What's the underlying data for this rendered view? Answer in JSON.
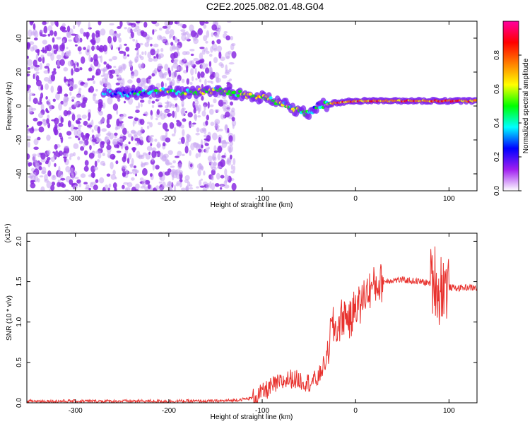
{
  "title": "C2E2.2025.082.01.48.G04",
  "chart_data": [
    {
      "type": "heatmap",
      "xlabel": "Height of straight line (km)",
      "ylabel": "Frequency (Hz)",
      "xlim": [
        -352,
        130
      ],
      "ylim": [
        -50,
        50
      ],
      "xticks": [
        -300,
        -200,
        -100,
        0,
        100
      ],
      "yticks": [
        -40,
        -20,
        0,
        20,
        40
      ],
      "colorbar": {
        "label": "Normalized spectral amplitude",
        "range": [
          0,
          1
        ],
        "ticks": [
          "0.0",
          "0.2",
          "0.4",
          "0.6",
          "0.8"
        ],
        "colors": [
          "#ffffff",
          "#a020f0",
          "#0000ff",
          "#00ffff",
          "#00ff00",
          "#ffff00",
          "#ff7f00",
          "#ff0000",
          "#ff00a0"
        ]
      },
      "noise_region_x": [
        -352,
        -130
      ],
      "signal_track": [
        {
          "x": -270,
          "y": 8,
          "amp": 0.3
        },
        {
          "x": -240,
          "y": 7,
          "amp": 0.35
        },
        {
          "x": -210,
          "y": 9,
          "amp": 0.45
        },
        {
          "x": -180,
          "y": 8,
          "amp": 0.5
        },
        {
          "x": -150,
          "y": 9,
          "amp": 0.55
        },
        {
          "x": -120,
          "y": 7,
          "amp": 0.55
        },
        {
          "x": -100,
          "y": 5,
          "amp": 0.6
        },
        {
          "x": -80,
          "y": 2,
          "amp": 0.5
        },
        {
          "x": -60,
          "y": -3,
          "amp": 0.45
        },
        {
          "x": -50,
          "y": -5,
          "amp": 0.4
        },
        {
          "x": -40,
          "y": 0,
          "amp": 0.35
        },
        {
          "x": -20,
          "y": 2,
          "amp": 0.7
        },
        {
          "x": 0,
          "y": 3,
          "amp": 0.75
        },
        {
          "x": 30,
          "y": 3,
          "amp": 0.7
        },
        {
          "x": 60,
          "y": 3,
          "amp": 0.75
        },
        {
          "x": 90,
          "y": 3,
          "amp": 0.8
        },
        {
          "x": 130,
          "y": 3,
          "amp": 0.75
        }
      ]
    },
    {
      "type": "line",
      "xlabel": "Height of straight line (km)",
      "ylabel": "SNR (10 * v/v)",
      "y_multiplier": "(x10⁴)",
      "xlim": [
        -352,
        130
      ],
      "ylim": [
        0,
        2.1
      ],
      "xticks": [
        -300,
        -200,
        -100,
        0,
        100
      ],
      "yticks": [
        "0.0",
        "0.5",
        "1.0",
        "1.5",
        "2.0"
      ],
      "color": "#e8322e",
      "series": [
        {
          "x": [
            -352,
            -300,
            -250,
            -200,
            -150,
            -130,
            -110,
            -100,
            -90,
            -80,
            -70,
            -60,
            -50,
            -40,
            -35,
            -30,
            -28,
            -25,
            -20,
            -15,
            -10,
            -5,
            0,
            5,
            10,
            20,
            30,
            40,
            50,
            60,
            70,
            80,
            85,
            90,
            92,
            95,
            100,
            110,
            120,
            130
          ],
          "y": [
            0.02,
            0.02,
            0.02,
            0.02,
            0.02,
            0.03,
            0.06,
            0.12,
            0.2,
            0.25,
            0.3,
            0.28,
            0.25,
            0.3,
            0.45,
            0.55,
            0.8,
            0.95,
            0.9,
            1.05,
            1.1,
            1.0,
            1.25,
            1.2,
            1.35,
            1.45,
            1.5,
            1.52,
            1.52,
            1.51,
            1.5,
            1.48,
            1.55,
            1.3,
            1.5,
            1.45,
            1.43,
            1.42,
            1.43,
            1.42
          ]
        }
      ]
    }
  ]
}
